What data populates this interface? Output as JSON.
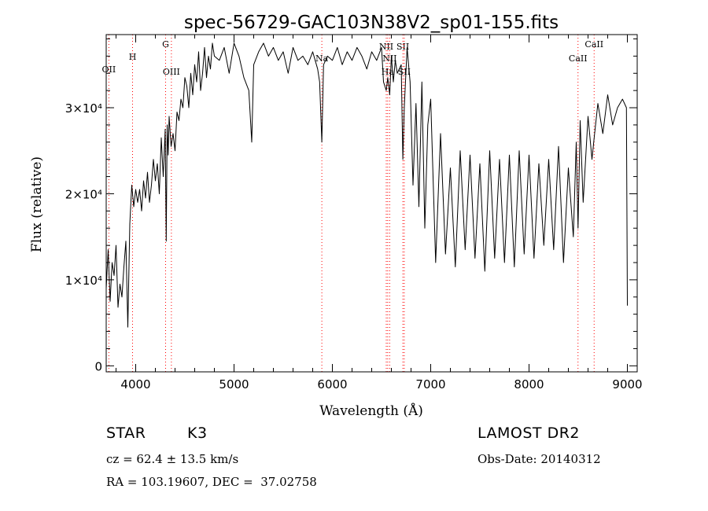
{
  "chart_data": {
    "type": "line",
    "title": "spec-56729-GAC103N38V2_sp01-155.fits",
    "xlabel": "Wavelength (Å)",
    "ylabel": "Flux (relative)",
    "xlim": [
      3700,
      9100
    ],
    "ylim": [
      -700,
      38500
    ],
    "x_ticks": [
      4000,
      5000,
      6000,
      7000,
      8000,
      9000
    ],
    "y_ticks": [
      {
        "value": 0,
        "label": "0"
      },
      {
        "value": 10000,
        "label": "1×10⁴"
      },
      {
        "value": 20000,
        "label": "2×10⁴"
      },
      {
        "value": 30000,
        "label": "3×10⁴"
      }
    ],
    "grid": false,
    "line_color": "#000000",
    "marker_color": "#ff0000",
    "line_markers": [
      {
        "label": "OII",
        "x": 3727
      },
      {
        "label": "H",
        "x": 3968
      },
      {
        "label": "G",
        "x": 4304
      },
      {
        "label": "OIII",
        "x": 4363
      },
      {
        "label": "Na",
        "x": 5893
      },
      {
        "label": "NII",
        "x": 6548
      },
      {
        "label": "Ha",
        "x": 6563
      },
      {
        "label": "NII",
        "x": 6583
      },
      {
        "label": "SII",
        "x": 6717
      },
      {
        "label": "SII",
        "x": 6731
      },
      {
        "label": "CaII",
        "x": 8498
      },
      {
        "label": "CaII",
        "x": 8662
      }
    ],
    "series": [
      {
        "x": [
          3700,
          3720,
          3740,
          3760,
          3780,
          3800,
          3820,
          3840,
          3860,
          3880,
          3900,
          3920,
          3940,
          3960,
          3980,
          4000,
          4020,
          4040,
          4060,
          4080,
          4100,
          4120,
          4140,
          4160,
          4180,
          4200,
          4220,
          4240,
          4260,
          4280,
          4300,
          4310,
          4320,
          4330,
          4340,
          4360,
          4380,
          4400,
          4420,
          4440,
          4460,
          4480,
          4500,
          4520,
          4540,
          4560,
          4580,
          4600,
          4620,
          4640,
          4660,
          4680,
          4700,
          4720,
          4740,
          4760,
          4780,
          4800,
          4850,
          4900,
          4950,
          5000,
          5050,
          5100,
          5150,
          5180,
          5200,
          5250,
          5300,
          5350,
          5400,
          5450,
          5500,
          5550,
          5600,
          5650,
          5700,
          5750,
          5800,
          5850,
          5870,
          5893,
          5910,
          5950,
          6000,
          6050,
          6100,
          6150,
          6200,
          6250,
          6300,
          6350,
          6400,
          6450,
          6500,
          6520,
          6548,
          6563,
          6583,
          6600,
          6620,
          6640,
          6660,
          6680,
          6700,
          6717,
          6731,
          6760,
          6790,
          6820,
          6850,
          6880,
          6910,
          6940,
          6970,
          7000,
          7050,
          7100,
          7150,
          7200,
          7250,
          7300,
          7350,
          7400,
          7450,
          7500,
          7550,
          7600,
          7650,
          7700,
          7750,
          7800,
          7850,
          7900,
          7950,
          8000,
          8050,
          8100,
          8150,
          8200,
          8250,
          8300,
          8350,
          8400,
          8450,
          8480,
          8498,
          8520,
          8550,
          8600,
          8640,
          8662,
          8700,
          8750,
          8800,
          8850,
          8900,
          8950,
          8990,
          9000
        ],
        "y": [
          9000,
          13500,
          7500,
          12000,
          10500,
          14000,
          6800,
          9500,
          8000,
          11500,
          14500,
          4500,
          16500,
          21000,
          18500,
          20500,
          19000,
          20500,
          18000,
          21500,
          19500,
          22500,
          19000,
          21000,
          24000,
          21500,
          23500,
          20000,
          26500,
          22000,
          27500,
          14500,
          28000,
          24500,
          29000,
          25500,
          27000,
          25000,
          29500,
          28500,
          31000,
          30000,
          33500,
          32500,
          30000,
          34000,
          31500,
          35000,
          33000,
          36500,
          32000,
          34000,
          37000,
          33500,
          36000,
          34500,
          37500,
          36000,
          35500,
          37000,
          34000,
          37500,
          36000,
          33500,
          32000,
          26000,
          35000,
          36500,
          37500,
          36000,
          37000,
          35500,
          36500,
          34000,
          37000,
          35500,
          36000,
          35000,
          36500,
          34500,
          33000,
          26000,
          35000,
          36000,
          35500,
          37000,
          35000,
          36500,
          35500,
          37000,
          36000,
          34500,
          36500,
          35500,
          37000,
          33000,
          32000,
          33500,
          31500,
          36000,
          33000,
          35500,
          34000,
          34500,
          35000,
          24000,
          30000,
          37000,
          33000,
          21000,
          30500,
          18500,
          33000,
          16000,
          28000,
          31000,
          12000,
          27000,
          13000,
          23000,
          11500,
          25000,
          13500,
          24500,
          12500,
          23500,
          11000,
          25000,
          12500,
          24000,
          12000,
          24500,
          11500,
          25000,
          13000,
          24500,
          12500,
          23500,
          14000,
          24000,
          13500,
          25500,
          12000,
          23000,
          15000,
          26000,
          16000,
          28500,
          19000,
          29000,
          24000,
          26500,
          30500,
          27000,
          31500,
          28000,
          30000,
          31000,
          30000,
          7000
        ]
      }
    ]
  },
  "info": {
    "object_class": "STAR",
    "subclass": "K3",
    "survey": "LAMOST DR2",
    "cz": "cz = 62.4 ± 13.5 km/s",
    "obs_date": "Obs-Date: 20140312",
    "coords": "RA = 103.19607, DEC =  37.02758"
  }
}
